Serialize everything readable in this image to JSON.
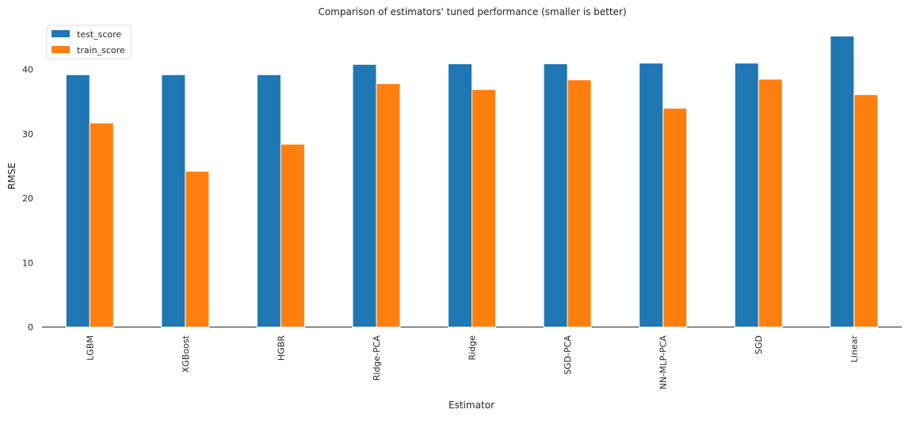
{
  "chart_data": {
    "type": "bar",
    "title": "Comparison of estimators' tuned performance (smaller is better)",
    "xlabel": "Estimator",
    "ylabel": "RMSE",
    "ylim": [
      0,
      46.5
    ],
    "yticks": [
      0,
      10,
      20,
      30,
      40
    ],
    "grid": false,
    "legend_position": "top-left",
    "categories": [
      "LGBM",
      "XGBoost",
      "HGBR",
      "Ridge-PCA",
      "Ridge",
      "SGD-PCA",
      "NN-MLP-PCA",
      "SGD",
      "Linear"
    ],
    "series": [
      {
        "name": "test_score",
        "color": "#1f77b4",
        "values": [
          39.2,
          39.2,
          39.2,
          40.8,
          40.9,
          40.9,
          41.0,
          41.0,
          45.2
        ]
      },
      {
        "name": "train_score",
        "color": "#ff7f0e",
        "values": [
          31.7,
          24.2,
          28.4,
          37.8,
          36.9,
          38.4,
          34.0,
          38.5,
          36.1
        ]
      }
    ]
  }
}
